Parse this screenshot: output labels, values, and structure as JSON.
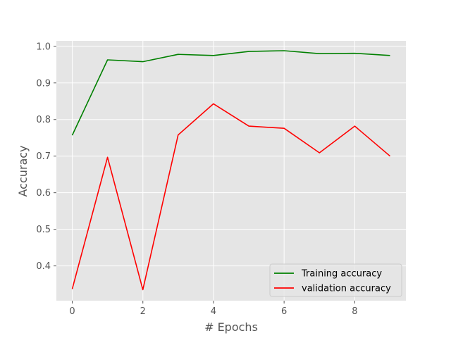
{
  "chart_data": {
    "type": "line",
    "title": "",
    "xlabel": "# Epochs",
    "ylabel": "Accuracy",
    "x": [
      0,
      1,
      2,
      3,
      4,
      5,
      6,
      7,
      8,
      9
    ],
    "xlim": [
      -0.45,
      9.45
    ],
    "ylim": [
      0.305,
      1.015
    ],
    "xticks": [
      0,
      2,
      4,
      6,
      8
    ],
    "yticks": [
      0.4,
      0.5,
      0.6,
      0.7,
      0.8,
      0.9,
      1.0
    ],
    "ytick_labels": [
      "0.4",
      "0.5",
      "0.6",
      "0.7",
      "0.8",
      "0.9",
      "1.0"
    ],
    "grid": true,
    "legend_position": "lower-right",
    "series": [
      {
        "name": "Training accuracy",
        "color": "#008000",
        "values": [
          0.757,
          0.963,
          0.958,
          0.978,
          0.975,
          0.986,
          0.988,
          0.98,
          0.981,
          0.975
        ]
      },
      {
        "name": "validation accuracy",
        "color": "#ff0000",
        "values": [
          0.337,
          0.697,
          0.335,
          0.758,
          0.843,
          0.782,
          0.776,
          0.709,
          0.782,
          0.7
        ]
      }
    ]
  }
}
